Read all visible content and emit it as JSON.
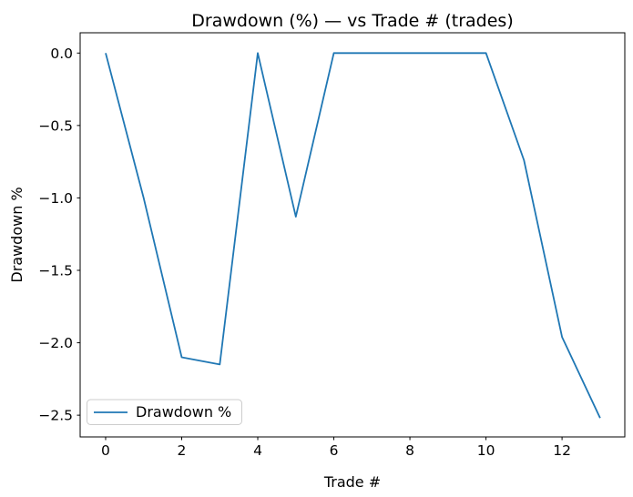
{
  "window": {
    "background": "#ffffff"
  },
  "chart_data": {
    "type": "line",
    "title": "Drawdown (%) — vs Trade # (trades)",
    "xlabel": "Trade #",
    "ylabel": "Drawdown %",
    "x": [
      0,
      1,
      2,
      3,
      4,
      5,
      6,
      7,
      8,
      9,
      10,
      11,
      12,
      13
    ],
    "series": [
      {
        "name": "Drawdown %",
        "color": "#1f77b4",
        "line_width": 1.8,
        "values": [
          0.0,
          -1.0,
          -2.1,
          -2.15,
          0.0,
          -1.13,
          0.0,
          0.0,
          0.0,
          0.0,
          0.0,
          -0.74,
          -1.96,
          -2.52
        ]
      }
    ],
    "xticks": {
      "values": [
        0,
        2,
        4,
        6,
        8,
        10,
        12
      ],
      "labels": [
        "0",
        "2",
        "4",
        "6",
        "8",
        "10",
        "12"
      ]
    },
    "yticks": {
      "values": [
        0.0,
        -0.5,
        -1.0,
        -1.5,
        -2.0,
        -2.5
      ],
      "labels": [
        "0.0",
        "−0.5",
        "−1.0",
        "−1.5",
        "−2.0",
        "−2.5"
      ]
    },
    "xlim": [
      -0.67,
      13.65
    ],
    "ylim": [
      -2.65,
      0.14
    ],
    "grid": false,
    "legend": {
      "position": "lower left",
      "label": "Drawdown %"
    },
    "axis_color": "#000000",
    "legend_border_color": "#cccccc",
    "legend_fill": "#ffffff"
  }
}
